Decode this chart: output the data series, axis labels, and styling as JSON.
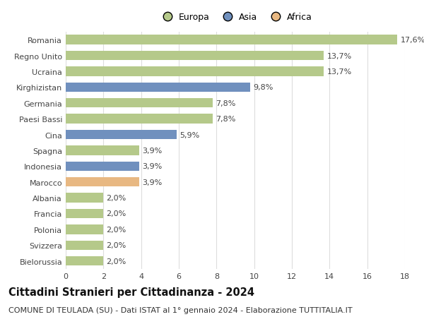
{
  "countries": [
    "Romania",
    "Regno Unito",
    "Ucraina",
    "Kirghizistan",
    "Germania",
    "Paesi Bassi",
    "Cina",
    "Spagna",
    "Indonesia",
    "Marocco",
    "Albania",
    "Francia",
    "Polonia",
    "Svizzera",
    "Bielorussia"
  ],
  "values": [
    17.6,
    13.7,
    13.7,
    9.8,
    7.8,
    7.8,
    5.9,
    3.9,
    3.9,
    3.9,
    2.0,
    2.0,
    2.0,
    2.0,
    2.0
  ],
  "labels": [
    "17,6%",
    "13,7%",
    "13,7%",
    "9,8%",
    "7,8%",
    "7,8%",
    "5,9%",
    "3,9%",
    "3,9%",
    "3,9%",
    "2,0%",
    "2,0%",
    "2,0%",
    "2,0%",
    "2,0%"
  ],
  "continents": [
    "Europa",
    "Europa",
    "Europa",
    "Asia",
    "Europa",
    "Europa",
    "Asia",
    "Europa",
    "Asia",
    "Africa",
    "Europa",
    "Europa",
    "Europa",
    "Europa",
    "Europa"
  ],
  "colors": {
    "Europa": "#b5c98a",
    "Asia": "#7090be",
    "Africa": "#e8b882"
  },
  "xlim": [
    0,
    18
  ],
  "xticks": [
    0,
    2,
    4,
    6,
    8,
    10,
    12,
    14,
    16,
    18
  ],
  "title": "Cittadini Stranieri per Cittadinanza - 2024",
  "subtitle": "COMUNE DI TEULADA (SU) - Dati ISTAT al 1° gennaio 2024 - Elaborazione TUTTITALIA.IT",
  "bg_color": "#ffffff",
  "grid_color": "#dddddd",
  "bar_height": 0.6,
  "label_fontsize": 8,
  "title_fontsize": 10.5,
  "subtitle_fontsize": 8,
  "tick_fontsize": 8,
  "legend_fontsize": 9
}
